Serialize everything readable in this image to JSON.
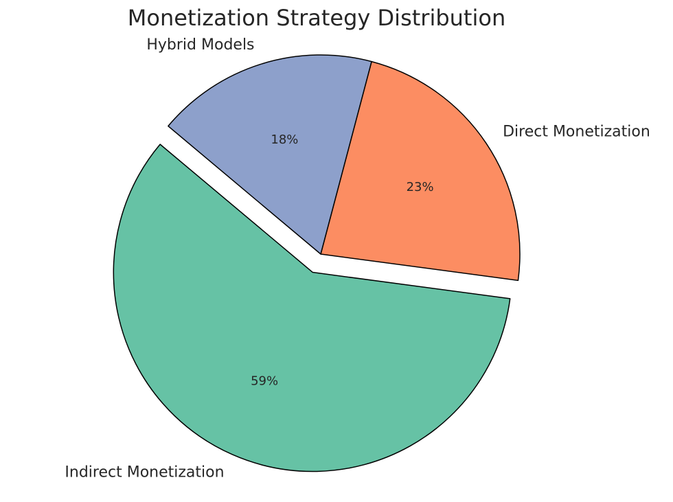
{
  "chart_data": {
    "type": "pie",
    "title": "Monetization Strategy Distribution",
    "categories": [
      "Indirect Monetization",
      "Direct Monetization",
      "Hybrid Models"
    ],
    "values": [
      59,
      23,
      18
    ],
    "value_labels": [
      "59%",
      "23%",
      "18%"
    ],
    "colors": [
      "#66c2a5",
      "#fc8d62",
      "#8da0cb"
    ],
    "explode": [
      0.1,
      0,
      0
    ],
    "startangle": 140
  }
}
